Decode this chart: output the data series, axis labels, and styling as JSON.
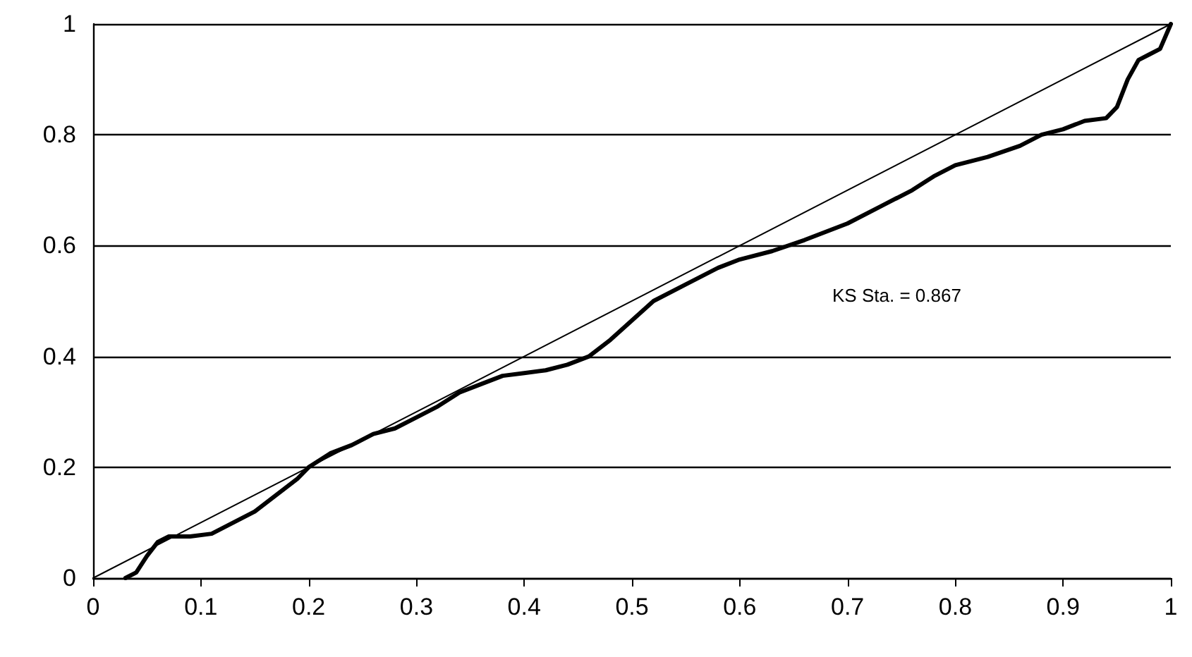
{
  "chart_data": {
    "type": "line",
    "annotations": [
      "KS Sta. = 0.867"
    ],
    "series": [
      {
        "color": "#000000",
        "x": [
          0,
          1
        ],
        "values": [
          0,
          1
        ]
      },
      {
        "color": "#000000",
        "x": [
          0.03,
          0.04,
          0.05,
          0.06,
          0.07,
          0.09,
          0.11,
          0.13,
          0.15,
          0.17,
          0.19,
          0.2,
          0.22,
          0.24,
          0.26,
          0.28,
          0.3,
          0.32,
          0.34,
          0.36,
          0.38,
          0.4,
          0.42,
          0.44,
          0.46,
          0.48,
          0.5,
          0.52,
          0.55,
          0.58,
          0.6,
          0.63,
          0.66,
          0.7,
          0.73,
          0.76,
          0.78,
          0.8,
          0.83,
          0.86,
          0.88,
          0.9,
          0.92,
          0.94,
          0.95,
          0.96,
          0.97,
          0.98,
          0.99,
          1
        ],
        "values": [
          0,
          0.01,
          0.04,
          0.065,
          0.075,
          0.075,
          0.08,
          0.1,
          0.12,
          0.15,
          0.18,
          0.2,
          0.225,
          0.24,
          0.26,
          0.27,
          0.29,
          0.31,
          0.335,
          0.35,
          0.365,
          0.37,
          0.375,
          0.385,
          0.4,
          0.43,
          0.465,
          0.5,
          0.53,
          0.56,
          0.575,
          0.59,
          0.61,
          0.64,
          0.67,
          0.7,
          0.725,
          0.745,
          0.76,
          0.78,
          0.8,
          0.81,
          0.825,
          0.83,
          0.85,
          0.9,
          0.935,
          0.945,
          0.955,
          1
        ]
      }
    ],
    "xlim": [
      0,
      1
    ],
    "xticks": [
      0,
      0.1,
      0.2,
      0.3,
      0.4,
      0.5,
      0.6,
      0.7,
      0.8,
      0.9,
      1
    ],
    "ylim": [
      0,
      1
    ],
    "yticks": [
      0,
      0.2,
      0.4,
      0.6,
      0.8,
      1
    ],
    "grid": "y",
    "marker": "none",
    "line_style": "solid"
  }
}
